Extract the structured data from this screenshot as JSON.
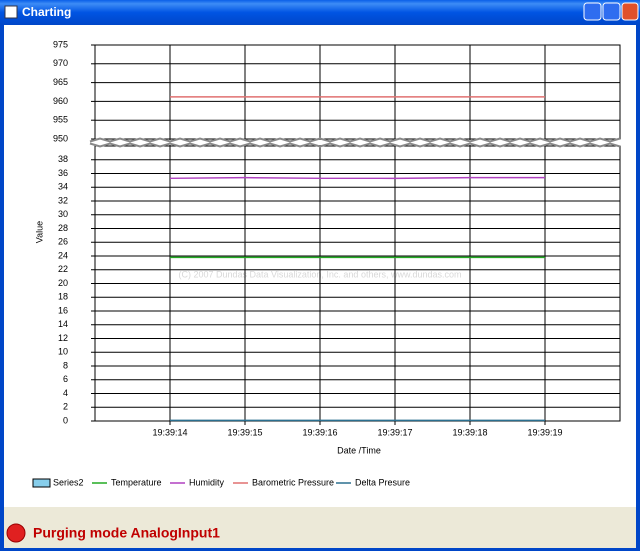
{
  "window": {
    "title": "Charting"
  },
  "chart_data": {
    "type": "line",
    "x_label": "Date /Time",
    "y_label": "Value",
    "watermark": "(C) 2007 Dundas Data Visualization, Inc. and others, www.dundas.com",
    "categories": [
      "19:39:14",
      "19:39:15",
      "19:39:16",
      "19:39:17",
      "19:39:18",
      "19:39:19"
    ],
    "ylim": [
      0,
      40
    ],
    "yticks": [
      0,
      2,
      4,
      6,
      8,
      10,
      12,
      14,
      16,
      18,
      20,
      22,
      24,
      26,
      28,
      30,
      32,
      34,
      36,
      38
    ],
    "y2lim": [
      950,
      975
    ],
    "y2ticks": [
      950,
      955,
      960,
      965,
      970,
      975
    ],
    "grid": true,
    "series": [
      {
        "name": "Series2",
        "color": "#87ceeb",
        "values": [
          null,
          null,
          null,
          null,
          null,
          null
        ]
      },
      {
        "name": "Temperature",
        "color": "#22aa22",
        "values": [
          23.8,
          23.8,
          23.8,
          23.8,
          23.8,
          23.8
        ]
      },
      {
        "name": "Humidity",
        "color": "#b040c0",
        "values": [
          35.3,
          35.4,
          35.3,
          35.3,
          35.4,
          35.4
        ]
      },
      {
        "name": "Barometric Pressure",
        "color": "#e07070",
        "values": [
          961.2,
          961.2,
          961.2,
          961.2,
          961.2,
          961.2
        ],
        "axis": "y2"
      },
      {
        "name": "Delta Presure",
        "color": "#2a6f8f",
        "values": [
          0.1,
          0.1,
          0.1,
          0.1,
          0.1,
          0.1
        ]
      }
    ]
  },
  "status": {
    "text": "Purging mode AnalogInput1"
  }
}
